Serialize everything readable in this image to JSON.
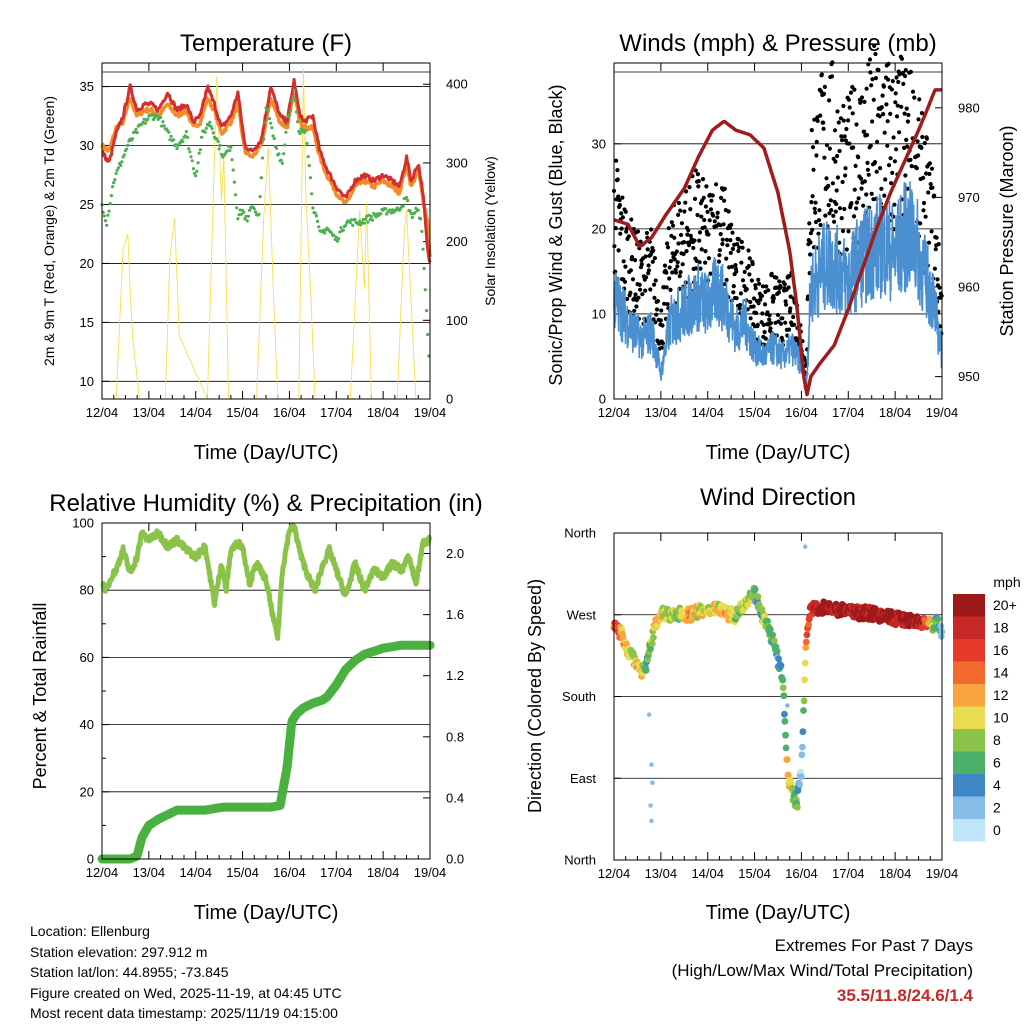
{
  "info": {
    "location": "Location: Ellenburg",
    "elevation": "Station elevation: 297.912 m",
    "latlon": "Station lat/lon: 44.8955; -73.845",
    "created": "Figure created on Wed, 2025-11-19, at 04:45 UTC",
    "recent": "Most recent data timestamp: 2025/11/19 04:15:00"
  },
  "extremes": {
    "title": "Extremes For Past 7 Days",
    "subtitle": "(High/Low/Max Wind/Total Precipitation)",
    "values": "35.5/11.8/24.6/1.4"
  },
  "legend": {
    "title": "mph",
    "labels": [
      "20+",
      "18",
      "16",
      "14",
      "12",
      "10",
      "8",
      "6",
      "4",
      "2",
      "0"
    ],
    "colors": [
      "#9e1a1a",
      "#c62828",
      "#e53a2a",
      "#f26a2e",
      "#f9a440",
      "#e8dc50",
      "#8bc34a",
      "#4caf6a",
      "#3e86c6",
      "#86bde6",
      "#bfe6f8"
    ]
  },
  "colors": {
    "temp2m": "#d32f2f",
    "temp9m": "#f28c28",
    "dewpoint": "#4caf50",
    "solar": "#f5e050",
    "gust": "#000000",
    "wind": "#4a90d0",
    "pressure": "#a01c1c",
    "rh": "#8bc34a",
    "rain": "#4ab040"
  },
  "chart_data": [
    {
      "type": "line",
      "id": "temperature",
      "title": "Temperature (F)",
      "xlabel": "Time (Day/UTC)",
      "ylabel": "2m & 9m T (Red, Orange) & 2m Td (Green)",
      "y2label": "Solar Insolation (Yellow)",
      "xlim": [
        0,
        7
      ],
      "ylim": [
        8.5,
        37
      ],
      "y2lim": [
        0,
        427
      ],
      "xticks": [
        "12/04",
        "13/04",
        "14/04",
        "15/04",
        "16/04",
        "17/04",
        "18/04",
        "19/04"
      ],
      "yticks": [
        10,
        15,
        20,
        25,
        30,
        35
      ],
      "y2ticks": [
        0,
        100,
        200,
        300,
        400
      ],
      "series": [
        {
          "name": "2m T",
          "x": [
            0,
            0.15,
            0.3,
            0.45,
            0.6,
            0.75,
            0.9,
            1.05,
            1.2,
            1.4,
            1.6,
            1.8,
            1.95,
            2.1,
            2.25,
            2.4,
            2.55,
            2.75,
            2.9,
            3.05,
            3.2,
            3.4,
            3.6,
            3.8,
            3.95,
            4.1,
            4.2,
            4.3,
            4.5,
            4.65,
            4.8,
            5.0,
            5.2,
            5.4,
            5.6,
            5.8,
            6.0,
            6.2,
            6.35,
            6.5,
            6.6,
            6.75,
            6.85,
            6.95,
            7.0
          ],
          "y": [
            29.5,
            28.5,
            31.0,
            32.5,
            35.0,
            33.0,
            33.5,
            33.5,
            33.0,
            34.5,
            33.0,
            33.5,
            32.0,
            32.5,
            35.0,
            33.5,
            31.5,
            32.5,
            34.5,
            30.0,
            29.5,
            30.5,
            35.0,
            32.5,
            32.0,
            35.5,
            33.0,
            32.0,
            32.5,
            29.5,
            28.0,
            26.5,
            25.5,
            27.0,
            27.5,
            27.0,
            27.5,
            27.0,
            26.5,
            29.0,
            27.0,
            28.5,
            26.0,
            21.0,
            20.0
          ]
        },
        {
          "name": "9m T",
          "x": [
            0,
            0.15,
            0.3,
            0.45,
            0.6,
            0.75,
            0.9,
            1.05,
            1.2,
            1.4,
            1.6,
            1.8,
            1.95,
            2.1,
            2.25,
            2.4,
            2.55,
            2.75,
            2.9,
            3.05,
            3.2,
            3.4,
            3.6,
            3.8,
            3.95,
            4.1,
            4.2,
            4.3,
            4.5,
            4.65,
            4.8,
            5.0,
            5.2,
            5.4,
            5.6,
            5.8,
            6.0,
            6.2,
            6.35,
            6.5,
            6.6,
            6.75,
            6.85,
            6.95,
            7.0
          ],
          "y": [
            30.0,
            29.5,
            31.5,
            32.0,
            34.0,
            32.5,
            33.0,
            33.0,
            32.5,
            33.5,
            32.5,
            33.0,
            31.5,
            32.0,
            34.0,
            33.0,
            31.0,
            32.0,
            33.5,
            29.5,
            29.0,
            30.0,
            34.0,
            32.0,
            31.5,
            34.5,
            32.5,
            31.5,
            31.5,
            29.0,
            27.5,
            26.0,
            25.0,
            26.5,
            27.0,
            26.5,
            27.0,
            26.5,
            26.0,
            28.5,
            26.5,
            28.0,
            25.5,
            23.5,
            20.5
          ]
        },
        {
          "name": "2m Td",
          "x": [
            0,
            0.1,
            0.25,
            0.4,
            0.55,
            0.7,
            0.9,
            1.05,
            1.2,
            1.4,
            1.6,
            1.8,
            1.9,
            2.0,
            2.15,
            2.3,
            2.45,
            2.6,
            2.75,
            2.9,
            3.0,
            3.1,
            3.2,
            3.35,
            3.5,
            3.7,
            3.85,
            3.95,
            4.1,
            4.2,
            4.35,
            4.5,
            4.65,
            4.8,
            5.0,
            5.2,
            5.5,
            5.8,
            6.1,
            6.3,
            6.5,
            6.6,
            6.7,
            6.8,
            6.9,
            7.0
          ],
          "y": [
            25.0,
            23.5,
            27.0,
            28.5,
            30.0,
            31.0,
            32.0,
            32.5,
            32.5,
            31.0,
            30.0,
            31.0,
            29.0,
            27.5,
            31.0,
            32.0,
            30.5,
            29.0,
            30.0,
            24.0,
            24.5,
            23.5,
            25.0,
            24.0,
            33.5,
            30.0,
            28.5,
            32.0,
            34.5,
            31.0,
            31.5,
            25.0,
            22.5,
            23.0,
            22.0,
            23.5,
            23.5,
            24.0,
            24.5,
            24.5,
            25.5,
            24.0,
            24.5,
            24.0,
            18.0,
            10.0
          ]
        },
        {
          "name": "Solar",
          "x": [
            0.3,
            0.45,
            0.55,
            0.6,
            0.65,
            0.8,
            1.35,
            1.45,
            1.55,
            1.65,
            2.25,
            2.45,
            2.55,
            2.6,
            2.7,
            3.3,
            3.45,
            3.55,
            3.65,
            3.75,
            4.2,
            4.3,
            4.35,
            4.45,
            4.55,
            5.3,
            5.5,
            5.6,
            5.65,
            5.75,
            6.3,
            6.45,
            6.5,
            6.55,
            6.7
          ],
          "y": [
            0,
            190,
            210,
            140,
            80,
            0,
            0,
            180,
            230,
            80,
            0,
            410,
            250,
            310,
            0,
            0,
            230,
            320,
            150,
            0,
            0,
            420,
            260,
            140,
            0,
            0,
            240,
            140,
            250,
            0,
            0,
            210,
            240,
            180,
            0
          ]
        }
      ]
    },
    {
      "type": "scatter",
      "id": "winds",
      "title": "Winds (mph) & Pressure (mb)",
      "xlabel": "Time (Day/UTC)",
      "ylabel": "Sonic/Prop Wind & Gust (Blue, Black)",
      "y2label": "Station Pressure (Maroon)",
      "xlim": [
        0,
        7
      ],
      "ylim": [
        0,
        39.5
      ],
      "y2lim": [
        947.5,
        985
      ],
      "xticks": [
        "12/04",
        "13/04",
        "14/04",
        "15/04",
        "16/04",
        "17/04",
        "18/04",
        "19/04"
      ],
      "yticks": [
        0,
        10,
        20,
        30
      ],
      "y2ticks": [
        950,
        960,
        970,
        980
      ],
      "series": [
        {
          "name": "Sonic/Prop Wind",
          "x": [
            0,
            0.2,
            0.4,
            0.6,
            0.8,
            1.0,
            1.2,
            1.4,
            1.6,
            1.8,
            2.0,
            2.2,
            2.4,
            2.6,
            2.8,
            3.0,
            3.2,
            3.4,
            3.6,
            3.8,
            4.0,
            4.1,
            4.2,
            4.4,
            4.6,
            4.8,
            5.0,
            5.2,
            5.4,
            5.6,
            5.8,
            6.0,
            6.2,
            6.4,
            6.6,
            6.8,
            7.0
          ],
          "y": [
            12,
            10,
            8,
            7,
            8,
            3,
            9,
            10,
            11,
            12,
            11,
            13,
            11,
            8,
            9,
            6,
            5,
            6,
            5,
            6,
            4,
            1,
            13,
            15,
            16,
            15,
            14,
            16,
            17,
            18,
            18,
            17,
            19,
            19,
            15,
            12,
            5
          ]
        },
        {
          "name": "Gust",
          "x": [
            0,
            0.2,
            0.4,
            0.6,
            0.8,
            1.0,
            1.2,
            1.4,
            1.6,
            1.8,
            2.0,
            2.2,
            2.4,
            2.6,
            2.8,
            3.0,
            3.2,
            3.4,
            3.6,
            3.8,
            4.0,
            4.1,
            4.2,
            4.4,
            4.6,
            4.8,
            5.0,
            5.2,
            5.4,
            5.6,
            5.8,
            6.0,
            6.2,
            6.4,
            6.6,
            6.8,
            7.0
          ],
          "y": [
            22,
            18,
            15,
            14,
            15,
            8,
            16,
            18,
            19,
            20,
            18,
            20,
            18,
            14,
            14,
            11,
            10,
            11,
            10,
            11,
            7,
            3,
            25,
            28,
            30,
            27,
            26,
            28,
            29,
            31,
            30,
            29,
            30,
            28,
            24,
            20,
            10
          ]
        },
        {
          "name": "Pressure",
          "x": [
            0,
            0.3,
            0.55,
            0.8,
            1.1,
            1.5,
            1.8,
            2.1,
            2.35,
            2.6,
            2.9,
            3.2,
            3.5,
            3.75,
            3.9,
            4.05,
            4.12,
            4.2,
            4.4,
            4.7,
            5.0,
            5.3,
            5.6,
            5.9,
            6.2,
            6.5,
            6.7,
            6.85,
            7.0
          ],
          "y": [
            967.5,
            967,
            964.5,
            965.5,
            968,
            971,
            974.5,
            977.5,
            978.5,
            977.5,
            977,
            975.5,
            970.5,
            964,
            958,
            950,
            948,
            950,
            951.5,
            953.5,
            957.5,
            962,
            966.5,
            970.5,
            974,
            977.5,
            980,
            982,
            982
          ]
        }
      ]
    },
    {
      "type": "line",
      "id": "humidity",
      "title": "Relative Humidity (%) & Precipitation (in)",
      "xlabel": "Time (Day/UTC)",
      "ylabel": "Percent & Total Rainfall",
      "xlim": [
        0,
        7
      ],
      "ylim": [
        0,
        100
      ],
      "y2lim": [
        0,
        2.2
      ],
      "xticks": [
        "12/04",
        "13/04",
        "14/04",
        "15/04",
        "16/04",
        "17/04",
        "18/04",
        "19/04"
      ],
      "yticks": [
        0,
        20,
        40,
        60,
        80,
        100
      ],
      "y2ticks": [
        "0.0",
        "0.4",
        "0.8",
        "1.2",
        "1.6",
        "2.0"
      ],
      "series": [
        {
          "name": "Relative Humidity",
          "x": [
            0,
            0.1,
            0.2,
            0.3,
            0.45,
            0.6,
            0.75,
            0.85,
            1.0,
            1.2,
            1.4,
            1.6,
            1.8,
            2.0,
            2.2,
            2.4,
            2.55,
            2.65,
            2.75,
            2.9,
            3.0,
            3.15,
            3.3,
            3.5,
            3.65,
            3.75,
            3.85,
            4.0,
            4.1,
            4.25,
            4.4,
            4.55,
            4.7,
            4.85,
            5.0,
            5.2,
            5.4,
            5.6,
            5.8,
            6.0,
            6.2,
            6.4,
            6.55,
            6.7,
            6.85,
            7.0
          ],
          "y": [
            82,
            80,
            84,
            86,
            92,
            85,
            90,
            97,
            95,
            97,
            93,
            95,
            92,
            90,
            93,
            76,
            88,
            80,
            92,
            94,
            93,
            82,
            88,
            83,
            72,
            66,
            86,
            98,
            99,
            90,
            84,
            80,
            87,
            92,
            86,
            78,
            88,
            80,
            86,
            84,
            88,
            86,
            90,
            82,
            94,
            95
          ]
        },
        {
          "name": "Total Rainfall",
          "x": [
            0,
            0.2,
            0.4,
            0.6,
            0.75,
            0.85,
            1.0,
            1.2,
            1.4,
            1.6,
            1.8,
            2.0,
            2.2,
            2.4,
            2.6,
            2.8,
            3.0,
            3.2,
            3.4,
            3.6,
            3.8,
            3.95,
            4.0,
            4.05,
            4.15,
            4.3,
            4.5,
            4.7,
            4.8,
            5.0,
            5.2,
            5.4,
            5.6,
            5.8,
            6.0,
            6.2,
            6.4,
            6.6,
            6.8,
            7.0
          ],
          "y": [
            0,
            0,
            0,
            0,
            0.02,
            0.14,
            0.22,
            0.26,
            0.29,
            0.32,
            0.32,
            0.32,
            0.32,
            0.33,
            0.34,
            0.34,
            0.34,
            0.34,
            0.34,
            0.34,
            0.35,
            0.6,
            0.75,
            0.9,
            0.95,
            0.99,
            1.02,
            1.04,
            1.06,
            1.14,
            1.24,
            1.3,
            1.34,
            1.36,
            1.38,
            1.39,
            1.4,
            1.4,
            1.4,
            1.4
          ]
        }
      ]
    },
    {
      "type": "scatter",
      "id": "direction",
      "title": "Wind Direction",
      "xlabel": "Time (Day/UTC)",
      "ylabel": "Direction (Colored By Speed)",
      "xlim": [
        0,
        7
      ],
      "ylim": [
        0,
        360
      ],
      "xticks": [
        "12/04",
        "13/04",
        "14/04",
        "15/04",
        "16/04",
        "17/04",
        "18/04",
        "19/04"
      ],
      "yticks": [
        "North",
        "East",
        "South",
        "West",
        "North"
      ],
      "series": [
        {
          "name": "Direction",
          "x": [
            0,
            0.1,
            0.2,
            0.3,
            0.4,
            0.5,
            0.6,
            0.7,
            0.8,
            0.9,
            1.0,
            1.2,
            1.4,
            1.6,
            1.8,
            2.0,
            2.2,
            2.4,
            2.6,
            2.8,
            3.0,
            3.1,
            3.2,
            3.3,
            3.4,
            3.5,
            3.6,
            3.65,
            3.7,
            3.75,
            3.8,
            3.9,
            4.0,
            4.1,
            4.2,
            4.4,
            4.6,
            4.8,
            5.0,
            5.2,
            5.4,
            5.6,
            5.8,
            6.0,
            6.2,
            6.4,
            6.6,
            6.8,
            6.9,
            7.0
          ],
          "y": [
            258,
            252,
            245,
            230,
            225,
            215,
            208,
            215,
            240,
            262,
            272,
            268,
            272,
            270,
            274,
            272,
            280,
            272,
            268,
            285,
            295,
            280,
            265,
            255,
            240,
            220,
            200,
            150,
            100,
            85,
            75,
            60,
            100,
            245,
            275,
            278,
            278,
            275,
            276,
            272,
            272,
            270,
            268,
            266,
            265,
            262,
            262,
            258,
            262,
            250
          ],
          "speed": [
            16,
            14,
            12,
            10,
            8,
            12,
            10,
            6,
            9,
            12,
            10,
            8,
            9,
            12,
            10,
            9,
            10,
            12,
            8,
            10,
            6,
            6,
            8,
            6,
            6,
            4,
            6,
            4,
            10,
            12,
            8,
            6,
            0,
            14,
            18,
            20,
            20,
            20,
            19,
            20,
            20,
            20,
            20,
            20,
            20,
            20,
            18,
            8,
            6,
            4
          ]
        }
      ]
    }
  ]
}
